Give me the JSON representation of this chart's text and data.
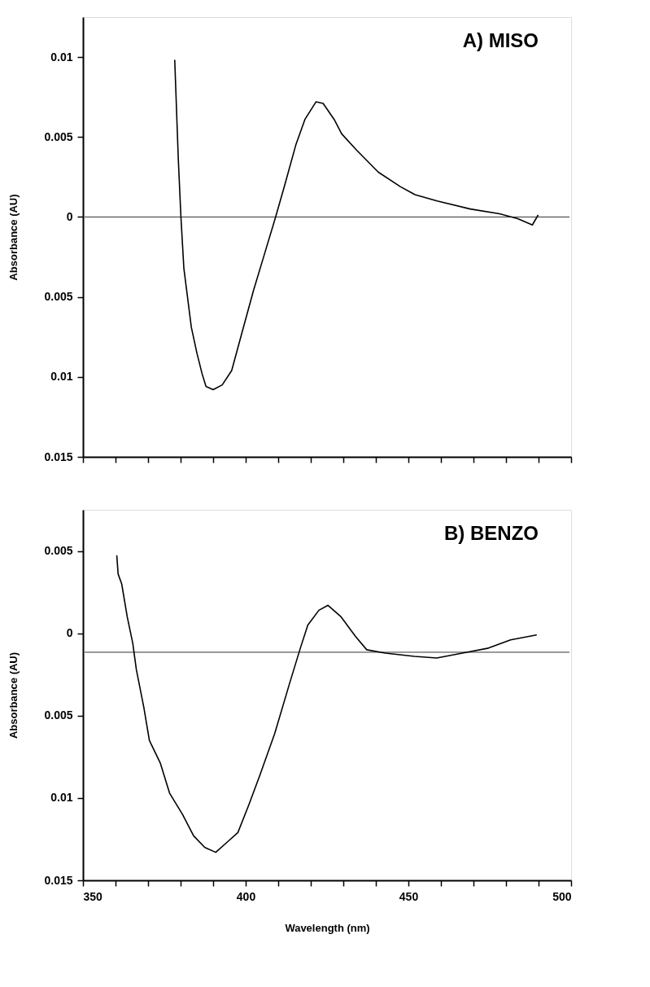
{
  "chart_data": [
    {
      "type": "line",
      "title": "A) MISO",
      "ylabel": "Absorbance  (AU)",
      "tick_labels": "y",
      "xlim": [
        350,
        500
      ],
      "xticks": [
        350,
        {
          "value": 360,
          "label": null
        },
        {
          "value": 370,
          "label": null
        },
        {
          "value": 380,
          "label": null
        },
        {
          "value": 390,
          "label": null
        },
        400,
        {
          "value": 410,
          "label": null
        },
        {
          "value": 420,
          "label": null
        },
        {
          "value": 430,
          "label": null
        },
        {
          "value": 440,
          "label": null
        },
        450,
        {
          "value": 460,
          "label": null
        },
        {
          "value": 470,
          "label": null
        },
        {
          "value": 480,
          "label": null
        },
        {
          "value": 490,
          "label": null
        },
        500
      ],
      "ylim": [
        -0.015,
        0.0125
      ],
      "yticks": [
        0.01,
        0.005,
        0,
        {
          "value": -0.005,
          "label": "0.005"
        },
        {
          "value": -0.01,
          "label": "0.01"
        },
        {
          "value": -0.015,
          "label": "0.015"
        }
      ],
      "series": [
        {
          "color": "#000000",
          "x": [
            378.2,
            379.3,
            380.1,
            381,
            383.3,
            385,
            386.6,
            387.8,
            390,
            392.8,
            395.7,
            398.5,
            402.4,
            405.8,
            409.2,
            412,
            415.4,
            418.2,
            421.6,
            423.8,
            427.2,
            429.5,
            434,
            440.8,
            447.5,
            452,
            458.8,
            469,
            478,
            483.6,
            488.1,
            489.8
          ],
          "values": [
            0.0098,
            0.0036,
            0,
            -0.0032,
            -0.0069,
            -0.0085,
            -0.0098,
            -0.0106,
            -0.0108,
            -0.0105,
            -0.0096,
            -0.0075,
            -0.0046,
            -0.0023,
            0,
            0.002,
            0.0045,
            0.0061,
            0.0072,
            0.0071,
            0.0061,
            0.0052,
            0.0042,
            0.0028,
            0.0019,
            0.0014,
            0.001,
            0.0005,
            0.0002,
            -0.0001,
            -0.0005,
            0.0001
          ]
        }
      ],
      "ref_lines": [
        {
          "axis": "y",
          "value": 0,
          "color": "#000000"
        }
      ],
      "grid": false
    },
    {
      "type": "line",
      "title": "B) BENZO",
      "xlabel": "Wavelength  (nm)",
      "ylabel": "Absorbance  (AU)",
      "xlim": [
        350,
        500
      ],
      "xticks": [
        350,
        {
          "value": 360,
          "label": null
        },
        {
          "value": 370,
          "label": null
        },
        {
          "value": 380,
          "label": null
        },
        {
          "value": 390,
          "label": null
        },
        400,
        {
          "value": 410,
          "label": null
        },
        {
          "value": 420,
          "label": null
        },
        {
          "value": 430,
          "label": null
        },
        {
          "value": 440,
          "label": null
        },
        450,
        {
          "value": 460,
          "label": null
        },
        {
          "value": 470,
          "label": null
        },
        {
          "value": 480,
          "label": null
        },
        {
          "value": 490,
          "label": null
        },
        500
      ],
      "ylim": [
        -0.015,
        0.0075
      ],
      "yticks": [
        0.005,
        0,
        {
          "value": -0.005,
          "label": "0.005"
        },
        {
          "value": -0.01,
          "label": "0.01"
        },
        {
          "value": -0.015,
          "label": "0.015"
        }
      ],
      "series": [
        {
          "color": "#000000",
          "x": [
            360.4,
            360.8,
            361.9,
            363.6,
            365.3,
            366.4,
            368.7,
            370.4,
            373.8,
            376.6,
            380.6,
            384,
            387.4,
            390.8,
            394.2,
            397.6,
            401,
            404.4,
            408.9,
            413.4,
            416.8,
            419.1,
            422.5,
            425.3,
            429.3,
            433.8,
            437.2,
            442.9,
            451.9,
            458.7,
            466.6,
            474.6,
            481.4,
            489.3
          ],
          "values": [
            0.0047,
            0.0036,
            0.003,
            0.001,
            -0.0006,
            -0.0022,
            -0.0045,
            -0.0065,
            -0.0079,
            -0.0097,
            -0.011,
            -0.0123,
            -0.013,
            -0.0133,
            -0.0127,
            -0.0121,
            -0.0104,
            -0.0086,
            -0.0061,
            -0.0031,
            -0.0009,
            0.0005,
            0.0014,
            0.0017,
            0.001,
            -0.0002,
            -0.001,
            -0.0012,
            -0.0014,
            -0.0015,
            -0.0012,
            -0.0009,
            -0.0004,
            -0.0001
          ]
        }
      ],
      "ref_lines": [
        {
          "axis": "y",
          "value": -0.00115,
          "color": "#000000"
        }
      ],
      "grid": false
    }
  ]
}
